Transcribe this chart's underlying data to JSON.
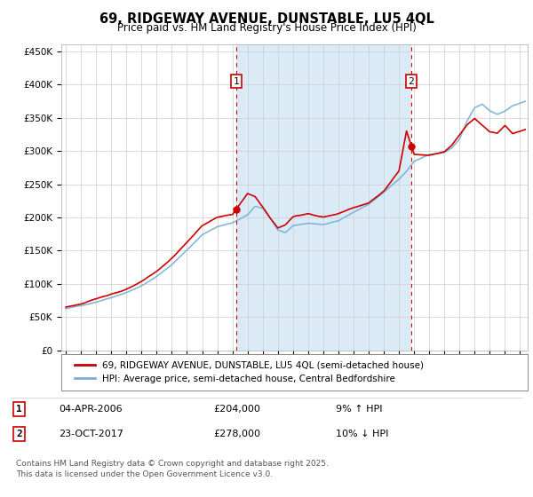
{
  "title": "69, RIDGEWAY AVENUE, DUNSTABLE, LU5 4QL",
  "subtitle": "Price paid vs. HM Land Registry's House Price Index (HPI)",
  "legend_line1": "69, RIDGEWAY AVENUE, DUNSTABLE, LU5 4QL (semi-detached house)",
  "legend_line2": "HPI: Average price, semi-detached house, Central Bedfordshire",
  "annotation1_label": "1",
  "annotation1_date": "04-APR-2006",
  "annotation1_price": "£204,000",
  "annotation1_hpi": "9% ↑ HPI",
  "annotation2_label": "2",
  "annotation2_date": "23-OCT-2017",
  "annotation2_price": "£278,000",
  "annotation2_hpi": "10% ↓ HPI",
  "footer": "Contains HM Land Registry data © Crown copyright and database right 2025.\nThis data is licensed under the Open Government Licence v3.0.",
  "sale1_year": 2006.27,
  "sale1_value": 204000,
  "sale2_year": 2017.8,
  "sale2_value": 278000,
  "red_line_color": "#cc0000",
  "blue_line_color": "#7ab0d4",
  "ownership_fill_color": "#daeaf7",
  "plot_bg_color": "#ffffff",
  "annotation_box_color": "#cc0000",
  "dashed_line_color": "#cc0000",
  "grid_color": "#cccccc",
  "ylim": [
    0,
    460000
  ],
  "xlim_start": 1994.7,
  "xlim_end": 2025.5
}
